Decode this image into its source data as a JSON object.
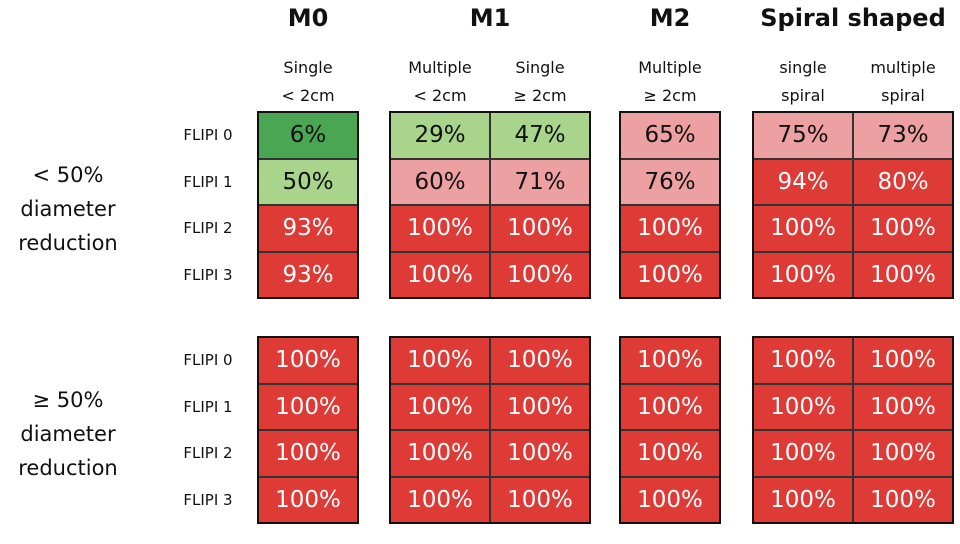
{
  "groups": [
    {
      "title": "M0",
      "columns": [
        [
          "Single",
          "< 2cm"
        ]
      ]
    },
    {
      "title": "M1",
      "columns": [
        [
          "Multiple",
          "< 2cm"
        ],
        [
          "Single",
          "≥ 2cm"
        ]
      ]
    },
    {
      "title": "M2",
      "columns": [
        [
          "Multiple",
          "≥ 2cm"
        ]
      ]
    },
    {
      "title": "Spiral shaped",
      "columns": [
        [
          "single",
          "spiral"
        ],
        [
          "multiple",
          "spiral"
        ]
      ]
    }
  ],
  "sections": [
    {
      "label": [
        "< 50%",
        "diameter",
        "reduction"
      ],
      "rows": [
        {
          "label": "FLIPI 0",
          "cells": [
            {
              "text": "6%",
              "color": "#4aa653"
            },
            {
              "text": "29%",
              "color": "#a8d48c"
            },
            {
              "text": "47%",
              "color": "#a8d48c"
            },
            {
              "text": "65%",
              "color": "#eda0a2"
            },
            {
              "text": "75%",
              "color": "#eda0a2"
            },
            {
              "text": "73%",
              "color": "#eda0a2"
            }
          ]
        },
        {
          "label": "FLIPI 1",
          "cells": [
            {
              "text": "50%",
              "color": "#a8d48c"
            },
            {
              "text": "60%",
              "color": "#eda0a2"
            },
            {
              "text": "71%",
              "color": "#eda0a2"
            },
            {
              "text": "76%",
              "color": "#eda0a2"
            },
            {
              "text": "94%",
              "color": "#de3a36"
            },
            {
              "text": "80%",
              "color": "#de3a36"
            }
          ]
        },
        {
          "label": "FLIPI 2",
          "cells": [
            {
              "text": "93%",
              "color": "#de3a36"
            },
            {
              "text": "100%",
              "color": "#de3a36"
            },
            {
              "text": "100%",
              "color": "#de3a36"
            },
            {
              "text": "100%",
              "color": "#de3a36"
            },
            {
              "text": "100%",
              "color": "#de3a36"
            },
            {
              "text": "100%",
              "color": "#de3a36"
            }
          ]
        },
        {
          "label": "FLIPI 3",
          "cells": [
            {
              "text": "93%",
              "color": "#de3a36"
            },
            {
              "text": "100%",
              "color": "#de3a36"
            },
            {
              "text": "100%",
              "color": "#de3a36"
            },
            {
              "text": "100%",
              "color": "#de3a36"
            },
            {
              "text": "100%",
              "color": "#de3a36"
            },
            {
              "text": "100%",
              "color": "#de3a36"
            }
          ]
        }
      ]
    },
    {
      "label": [
        "≥ 50%",
        "diameter",
        "reduction"
      ],
      "rows": [
        {
          "label": "FLIPI 0",
          "cells": [
            {
              "text": "100%",
              "color": "#de3a36"
            },
            {
              "text": "100%",
              "color": "#de3a36"
            },
            {
              "text": "100%",
              "color": "#de3a36"
            },
            {
              "text": "100%",
              "color": "#de3a36"
            },
            {
              "text": "100%",
              "color": "#de3a36"
            },
            {
              "text": "100%",
              "color": "#de3a36"
            }
          ]
        },
        {
          "label": "FLIPI 1",
          "cells": [
            {
              "text": "100%",
              "color": "#de3a36"
            },
            {
              "text": "100%",
              "color": "#de3a36"
            },
            {
              "text": "100%",
              "color": "#de3a36"
            },
            {
              "text": "100%",
              "color": "#de3a36"
            },
            {
              "text": "100%",
              "color": "#de3a36"
            },
            {
              "text": "100%",
              "color": "#de3a36"
            }
          ]
        },
        {
          "label": "FLIPI 2",
          "cells": [
            {
              "text": "100%",
              "color": "#de3a36"
            },
            {
              "text": "100%",
              "color": "#de3a36"
            },
            {
              "text": "100%",
              "color": "#de3a36"
            },
            {
              "text": "100%",
              "color": "#de3a36"
            },
            {
              "text": "100%",
              "color": "#de3a36"
            },
            {
              "text": "100%",
              "color": "#de3a36"
            }
          ]
        },
        {
          "label": "FLIPI 3",
          "cells": [
            {
              "text": "100%",
              "color": "#de3a36"
            },
            {
              "text": "100%",
              "color": "#de3a36"
            },
            {
              "text": "100%",
              "color": "#de3a36"
            },
            {
              "text": "100%",
              "color": "#de3a36"
            },
            {
              "text": "100%",
              "color": "#de3a36"
            },
            {
              "text": "100%",
              "color": "#de3a36"
            }
          ]
        }
      ]
    }
  ]
}
